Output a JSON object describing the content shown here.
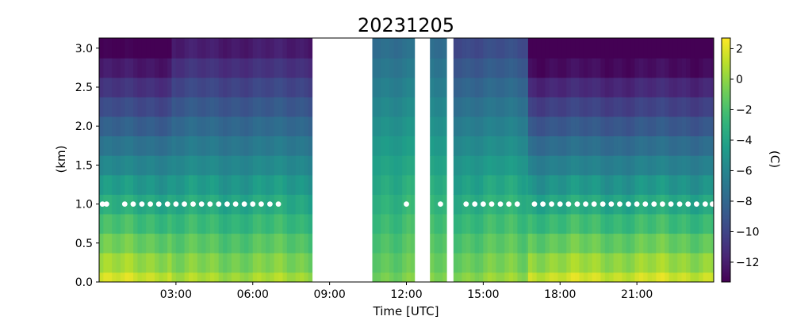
{
  "chart_data": {
    "type": "heatmap",
    "title": "20231205",
    "xlabel": "Time [UTC]",
    "ylabel": "(km)",
    "colorbar_label": "(C)",
    "colormap": "viridis",
    "xlim": [
      0,
      24
    ],
    "ylim": [
      0,
      3.13
    ],
    "clim": [
      -13.3,
      2.7
    ],
    "x_ticks": [
      {
        "value": 3,
        "label": "03:00"
      },
      {
        "value": 6,
        "label": "06:00"
      },
      {
        "value": 9,
        "label": "09:00"
      },
      {
        "value": 12,
        "label": "12:00"
      },
      {
        "value": 15,
        "label": "15:00"
      },
      {
        "value": 18,
        "label": "18:00"
      },
      {
        "value": 21,
        "label": "21:00"
      }
    ],
    "y_ticks": [
      {
        "value": 0.0,
        "label": "0.0"
      },
      {
        "value": 0.5,
        "label": "0.5"
      },
      {
        "value": 1.0,
        "label": "1.0"
      },
      {
        "value": 1.5,
        "label": "1.5"
      },
      {
        "value": 2.0,
        "label": "2.0"
      },
      {
        "value": 2.5,
        "label": "2.5"
      },
      {
        "value": 3.0,
        "label": "3.0"
      }
    ],
    "colorbar_ticks": [
      {
        "value": 2,
        "label": "2"
      },
      {
        "value": 0,
        "label": "0"
      },
      {
        "value": -2,
        "label": "−2"
      },
      {
        "value": -4,
        "label": "−4"
      },
      {
        "value": -6,
        "label": "−6"
      },
      {
        "value": -8,
        "label": "−8"
      },
      {
        "value": -10,
        "label": "−10"
      },
      {
        "value": -12,
        "label": "−12"
      }
    ],
    "heights_km": [
      0.0,
      0.25,
      0.5,
      0.75,
      1.0,
      1.25,
      1.5,
      1.75,
      2.0,
      2.25,
      2.5,
      2.75,
      3.0
    ],
    "periods": [
      {
        "start": 0.0,
        "end": 2.833,
        "surface": 1.5,
        "lapse": 5.0
      },
      {
        "start": 2.833,
        "end": 8.333,
        "surface": 0.5,
        "lapse": 4.2
      },
      {
        "start": 10.667,
        "end": 12.333,
        "surface": -0.5,
        "lapse": 2.3
      },
      {
        "start": 12.917,
        "end": 13.583,
        "surface": -0.5,
        "lapse": 2.4
      },
      {
        "start": 13.833,
        "end": 16.75,
        "surface": 0.0,
        "lapse": 3.2
      },
      {
        "start": 16.75,
        "end": 24.0,
        "surface": 1.5,
        "lapse": 5.2
      }
    ],
    "gaps": [
      [
        8.333,
        10.667
      ],
      [
        12.333,
        12.917
      ],
      [
        13.583,
        13.833
      ]
    ],
    "markers": {
      "y_km": 1.0,
      "x_hours": [
        0.13,
        0.29,
        1.0,
        1.33,
        1.67,
        2.0,
        2.33,
        2.67,
        3.0,
        3.33,
        3.67,
        4.0,
        4.33,
        4.67,
        5.0,
        5.33,
        5.67,
        6.0,
        6.33,
        6.67,
        7.0,
        12.0,
        13.33,
        14.33,
        14.67,
        15.0,
        15.33,
        15.67,
        16.0,
        16.33,
        17.0,
        17.33,
        17.67,
        18.0,
        18.33,
        18.67,
        19.0,
        19.33,
        19.67,
        20.0,
        20.33,
        20.67,
        21.0,
        21.33,
        21.67,
        22.0,
        22.33,
        22.67,
        23.0,
        23.33,
        23.67,
        23.95
      ]
    }
  }
}
